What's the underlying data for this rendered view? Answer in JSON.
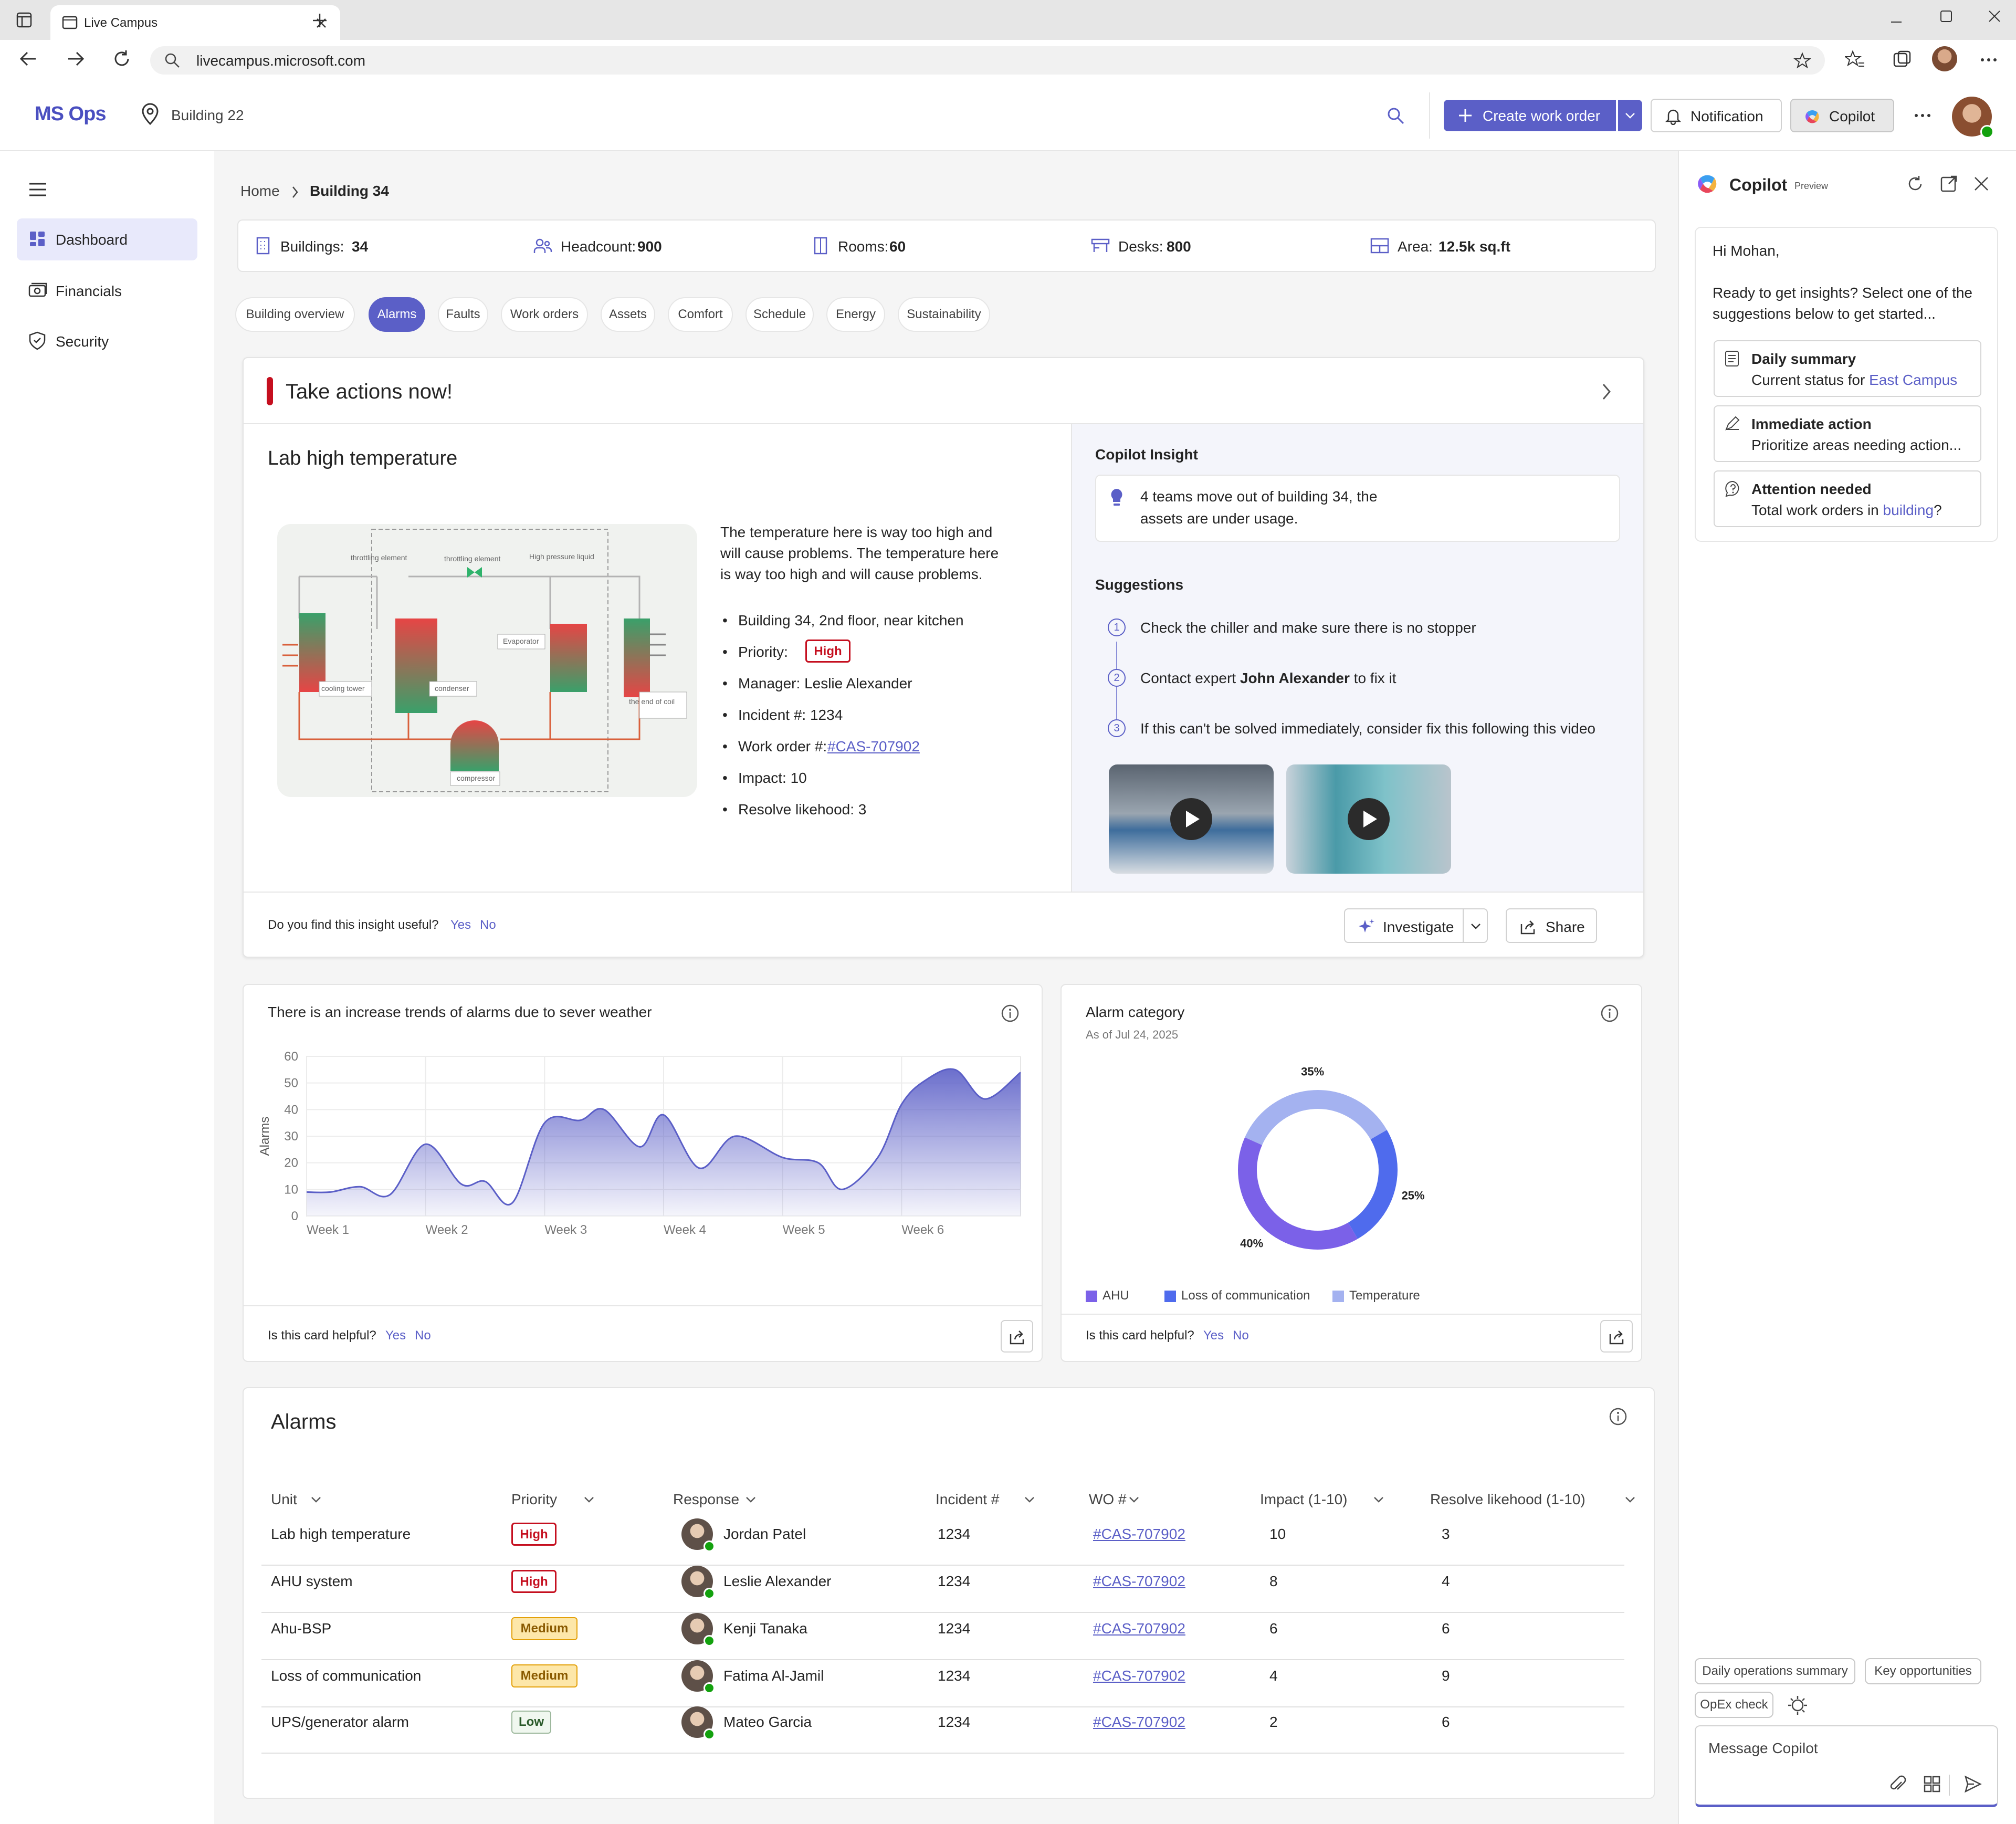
{
  "browser": {
    "tab_title": "Live Campus",
    "url": "livecampus.microsoft.com"
  },
  "appbar": {
    "brand": "MS Ops",
    "location": "Building 22",
    "create_label": "Create work order",
    "notification_label": "Notification",
    "copilot_label": "Copilot"
  },
  "nav": {
    "items": [
      {
        "label": "Dashboard",
        "icon": "dashboard-icon",
        "active": true
      },
      {
        "label": "Financials",
        "icon": "money-icon",
        "active": false
      },
      {
        "label": "Security",
        "icon": "shield-icon",
        "active": false
      }
    ]
  },
  "breadcrumb": {
    "home": "Home",
    "current": "Building 34"
  },
  "stats": {
    "buildings": {
      "label": "Buildings:",
      "value": "34"
    },
    "headcount": {
      "label": "Headcount:",
      "value": "900"
    },
    "rooms": {
      "label": "Rooms:",
      "value": "60"
    },
    "desks": {
      "label": "Desks:",
      "value": "800"
    },
    "area": {
      "label": "Area:",
      "value": "12.5k sq.ft"
    }
  },
  "tabs": [
    "Building overview",
    "Alarms",
    "Faults",
    "Work orders",
    "Assets",
    "Comfort",
    "Schedule",
    "Energy",
    "Sustainability"
  ],
  "action_card": {
    "title": "Take actions now!",
    "alert_title": "Lab high temperature",
    "diagram_labels": {
      "throttling1": "throttling element",
      "throttling2": "throttling element",
      "high_pressure": "High pressure liquid",
      "evaporator": "Evaporator",
      "cooling_tower": "cooling tower",
      "condenser": "condenser",
      "end_of_coil": "the end of coil",
      "compressor": "compressor"
    },
    "description": "The temperature here is way too high and will cause problems. The temperature here is way too high and will cause problems.",
    "location": "Building 34, 2nd floor, near kitchen",
    "priority_label": "Priority:",
    "priority": "High",
    "manager": "Manager: Leslie Alexander",
    "incident": "Incident #: 1234",
    "work_order_label": "Work order #:",
    "work_order": "#CAS-707902",
    "impact": "Impact: 10",
    "resolve": "Resolve likehood: 3",
    "insight_title": "Copilot Insight",
    "insight_text_1": "4 teams move out of building 34, the",
    "insight_text_2": "assets are under usage.",
    "suggestions_title": "Suggestions",
    "steps": [
      {
        "num": "1",
        "text_pre": "Check the chiller and make sure there is no stopper",
        "bold": "",
        "text_post": ""
      },
      {
        "num": "2",
        "text_pre": "Contact expert ",
        "bold": "John Alexander",
        "text_post": " to fix it"
      },
      {
        "num": "3",
        "text_pre": "If this can't be solved immediately, consider fix this following this video",
        "bold": "",
        "text_post": ""
      }
    ],
    "feedback_q": "Do you find this insight useful?",
    "yes": "Yes",
    "no": "No",
    "investigate": "Investigate",
    "share": "Share"
  },
  "trend_card": {
    "title": "There is an increase trends of alarms due to sever weather",
    "helpful_q": "Is this card helpful?",
    "yes": "Yes",
    "no": "No"
  },
  "category_card": {
    "title": "Alarm category",
    "subtitle": "As of Jul 24, 2025",
    "helpful_q": "Is this card helpful?",
    "yes": "Yes",
    "no": "No"
  },
  "chart_data": [
    {
      "type": "area",
      "title": "There is an increase trends of alarms due to sever weather",
      "xlabel": "",
      "ylabel": "Alarms",
      "ylim": [
        0,
        60
      ],
      "yticks": [
        0,
        10,
        20,
        30,
        40,
        50,
        60
      ],
      "x_tick_labels": [
        "Week 1",
        "Week 2",
        "Week 3",
        "Week 4",
        "Week 5",
        "Week 6"
      ],
      "x": [
        1.0,
        1.2,
        1.45,
        1.7,
        2.0,
        2.3,
        2.5,
        2.73,
        3.0,
        3.3,
        3.5,
        3.8,
        4.0,
        4.3,
        4.6,
        5.0,
        5.3,
        5.5,
        5.8,
        6.0,
        6.2,
        6.45,
        6.7,
        7.0
      ],
      "values": [
        9,
        9,
        11,
        8,
        27,
        12,
        13,
        5,
        35,
        36,
        40,
        26,
        38,
        18,
        30,
        22,
        20,
        10,
        22,
        42,
        51,
        55,
        44,
        54
      ],
      "grid": true
    },
    {
      "type": "pie",
      "title": "Alarm category",
      "categories": [
        "AHU",
        "Loss of communication",
        "Temperature"
      ],
      "values": [
        40,
        25,
        35
      ],
      "labels": [
        "40%",
        "25%",
        "35%"
      ],
      "colors": [
        "#7b61e8",
        "#4f6bed",
        "#a4b2f0"
      ],
      "legend": "bottom"
    }
  ],
  "alarms_table": {
    "title": "Alarms",
    "columns": [
      "Unit",
      "Priority",
      "Response",
      "Incident #",
      "WO #",
      "Impact (1-10)",
      "Resolve likehood (1-10)"
    ],
    "rows": [
      {
        "unit": "Lab high temperature",
        "priority": "High",
        "level": "high",
        "response": "Jordan Patel",
        "incident": "1234",
        "wo": "#CAS-707902",
        "impact": "10",
        "resolve": "3"
      },
      {
        "unit": "AHU system",
        "priority": "High",
        "level": "high",
        "response": "Leslie Alexander",
        "incident": "1234",
        "wo": "#CAS-707902",
        "impact": "8",
        "resolve": "4"
      },
      {
        "unit": "Ahu-BSP",
        "priority": "Medium",
        "level": "medium",
        "response": "Kenji Tanaka",
        "incident": "1234",
        "wo": "#CAS-707902",
        "impact": "6",
        "resolve": "6"
      },
      {
        "unit": "Loss of communication",
        "priority": "Medium",
        "level": "medium",
        "response": "Fatima Al-Jamil",
        "incident": "1234",
        "wo": "#CAS-707902",
        "impact": "4",
        "resolve": "9"
      },
      {
        "unit": "UPS/generator alarm",
        "priority": "Low",
        "level": "low",
        "response": "Mateo Garcia",
        "incident": "1234",
        "wo": "#CAS-707902",
        "impact": "2",
        "resolve": "6"
      }
    ]
  },
  "copilot_panel": {
    "title": "Copilot",
    "badge": "Preview",
    "greeting": "Hi Mohan,",
    "intro_1": "Ready to get insights? Select one of the",
    "intro_2": "suggestions below to get started...",
    "suggestions": [
      {
        "title": "Daily summary",
        "sub_pre": "Current status for ",
        "sub_link": "East Campus",
        "sub_post": ""
      },
      {
        "title": "Immediate action",
        "sub_pre": "Prioritize areas needing action...",
        "sub_link": "",
        "sub_post": ""
      },
      {
        "title": "Attention needed",
        "sub_pre": "Total work orders in ",
        "sub_link": "building",
        "sub_post": "?"
      }
    ],
    "chips": [
      "Daily operations summary",
      "Key opportunities",
      "OpEx check"
    ],
    "message_placeholder": "Message Copilot"
  }
}
